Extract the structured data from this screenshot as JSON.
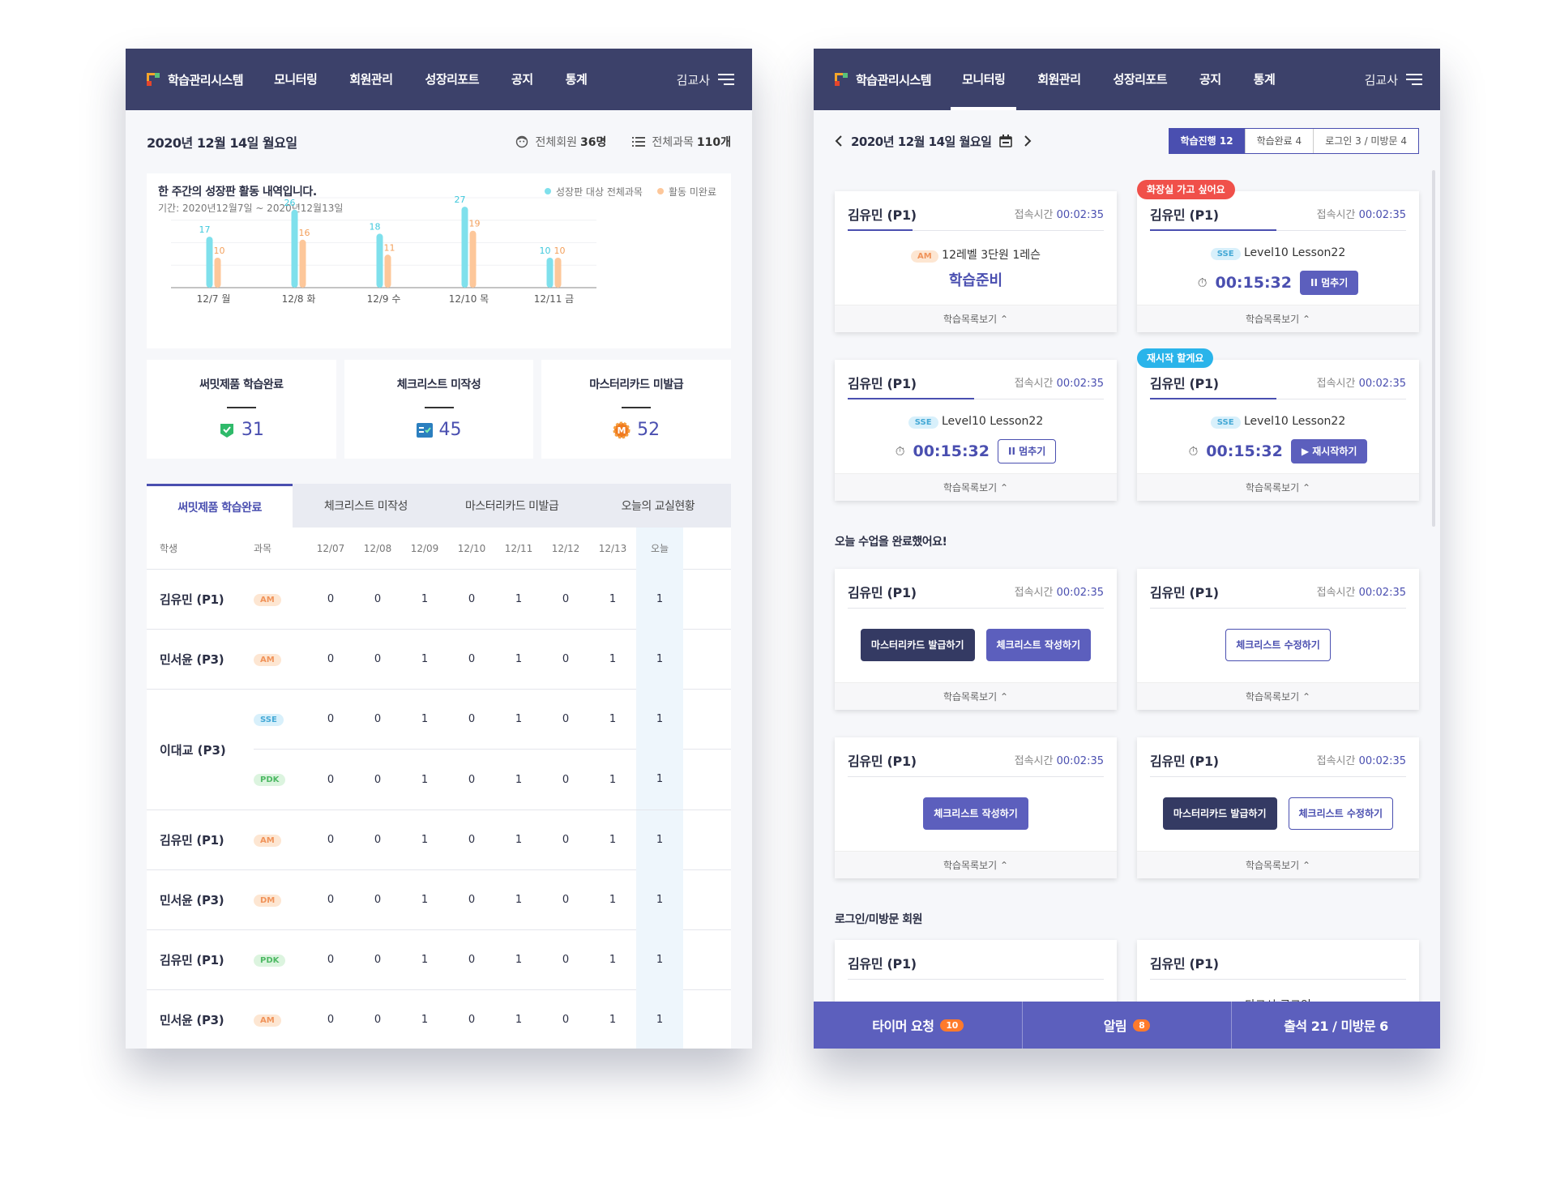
{
  "left": {
    "nav": {
      "brand": "학습관리시스템",
      "items": [
        "모니터링",
        "회원관리",
        "성장리포트",
        "공지",
        "통계"
      ],
      "user": "김교사"
    },
    "header": {
      "date": "2020년 12월 14일 월요일",
      "members_label": "전체회원",
      "members_value": "36명",
      "subjects_label": "전체과목",
      "subjects_value": "110개"
    },
    "chart_card": {
      "title": "한 주간의 성장판 활동 내역입니다.",
      "period": "기간: 2020년12월7일 ~ 2020년12월13일"
    },
    "kpis": [
      {
        "label": "써밋제품 학습완료",
        "value": "31"
      },
      {
        "label": "체크리스트 미작성",
        "value": "45"
      },
      {
        "label": "마스터리카드 미발급",
        "value": "52"
      }
    ],
    "kpi_icon_letter": "M",
    "tabs": [
      "써밋제품 학습완료",
      "체크리스트 미작성",
      "마스터리카드 미발급",
      "오늘의 교실현황"
    ],
    "table": {
      "headers": [
        "학생",
        "과목",
        "12/07",
        "12/08",
        "12/09",
        "12/10",
        "12/11",
        "12/12",
        "12/13",
        "오늘"
      ],
      "rows": [
        {
          "name": "김유민 (P1)",
          "subject": "AM",
          "values": [
            "0",
            "0",
            "1",
            "0",
            "1",
            "0",
            "1",
            "1"
          ]
        },
        {
          "name": "민서윤 (P3)",
          "subject": "AM",
          "values": [
            "0",
            "0",
            "1",
            "0",
            "1",
            "0",
            "1",
            "1"
          ]
        },
        {
          "name": "이대교 (P3)",
          "subject": "SSE",
          "values": [
            "0",
            "0",
            "1",
            "0",
            "1",
            "0",
            "1",
            "1"
          ]
        },
        {
          "name": "이대교 (P3)",
          "subject": "PDK",
          "values": [
            "0",
            "0",
            "1",
            "0",
            "1",
            "0",
            "1",
            "1"
          ]
        },
        {
          "name": "김유민 (P1)",
          "subject": "AM",
          "values": [
            "0",
            "0",
            "1",
            "0",
            "1",
            "0",
            "1",
            "1"
          ]
        },
        {
          "name": "민서윤 (P3)",
          "subject": "DM",
          "values": [
            "0",
            "0",
            "1",
            "0",
            "1",
            "0",
            "1",
            "1"
          ]
        },
        {
          "name": "김유민 (P1)",
          "subject": "PDK",
          "values": [
            "0",
            "0",
            "1",
            "0",
            "1",
            "0",
            "1",
            "1"
          ]
        },
        {
          "name": "민서윤 (P3)",
          "subject": "AM",
          "values": [
            "0",
            "0",
            "1",
            "0",
            "1",
            "0",
            "1",
            "1"
          ]
        }
      ]
    }
  },
  "chart_data": {
    "type": "bar",
    "categories": [
      "12/7 월",
      "12/8 화",
      "12/9 수",
      "12/10 목",
      "12/11 금"
    ],
    "series": [
      {
        "name": "성장판 대상 전체과목",
        "values": [
          17,
          26,
          18,
          27,
          10
        ],
        "color": "#7fe0ec"
      },
      {
        "name": "활동 미완료",
        "values": [
          10,
          16,
          11,
          19,
          10
        ],
        "color": "#fdc79a"
      }
    ],
    "ylim": [
      0,
      30
    ],
    "legend": "top-right",
    "grid": true
  },
  "right": {
    "nav": {
      "brand": "학습관리시스템",
      "items": [
        "모니터링",
        "회원관리",
        "성장리포트",
        "공지",
        "통계"
      ],
      "active": "모니터링",
      "user": "김교사"
    },
    "date": "2020년 12월 14일 월요일",
    "segments": [
      "학습진행 12",
      "학습완료 4",
      "로그인 3 / 미방문 4"
    ],
    "cards_in_progress": [
      {
        "name": "김유민 (P1)",
        "time_label": "접속시간",
        "time": "00:02:35",
        "subject": "AM",
        "lesson": "12레벨 3단원 1레슨",
        "status": "학습준비",
        "footer": "학습목록보기"
      },
      {
        "name": "김유민 (P1)",
        "time_label": "접속시간",
        "time": "00:02:35",
        "subject": "SSE",
        "lesson": "Level10 Lesson22",
        "timer": "00:15:32",
        "button": "II 멈추기",
        "tip": "화장실 가고 싶어요",
        "footer": "학습목록보기"
      },
      {
        "name": "김유민 (P1)",
        "time_label": "접속시간",
        "time": "00:02:35",
        "subject": "SSE",
        "lesson": "Level10 Lesson22",
        "timer": "00:15:32",
        "button": "II 멈추기",
        "footer": "학습목록보기"
      },
      {
        "name": "김유민 (P1)",
        "time_label": "접속시간",
        "time": "00:02:35",
        "subject": "SSE",
        "lesson": "Level10 Lesson22",
        "timer": "00:15:32",
        "button": "▶ 재시작하기",
        "tip": "재시작 할게요",
        "footer": "학습목록보기"
      }
    ],
    "section_done": "오늘 수업을 완료했어요!",
    "cards_done": [
      {
        "name": "김유민 (P1)",
        "time_label": "접속시간",
        "time": "00:02:35",
        "buttons": [
          "마스터리카드 발급하기",
          "체크리스트 작성하기"
        ],
        "footer": "학습목록보기"
      },
      {
        "name": "김유민 (P1)",
        "time_label": "접속시간",
        "time": "00:02:35",
        "buttons": [
          "체크리스트 수정하기"
        ],
        "footer": "학습목록보기"
      },
      {
        "name": "김유민 (P1)",
        "time_label": "접속시간",
        "time": "00:02:35",
        "buttons": [
          "체크리스트 작성하기"
        ],
        "footer": "학습목록보기"
      },
      {
        "name": "김유민 (P1)",
        "time_label": "접속시간",
        "time": "00:02:35",
        "buttons": [
          "마스터리카드 발급하기",
          "체크리스트 수정하기"
        ],
        "footer": "학습목록보기"
      }
    ],
    "section_login": "로그인/미방문 회원",
    "cards_login": [
      {
        "name": "김유민 (P1)"
      },
      {
        "name": "김유민 (P1)",
        "partial": "다그시 로그인"
      }
    ],
    "bottom": [
      {
        "label": "타이머 요청",
        "count": "10"
      },
      {
        "label": "알림",
        "count": "8"
      },
      {
        "label": "출석 21 / 미방문 6"
      }
    ]
  },
  "colors": {
    "nav": "#3c416a",
    "accent": "#4a4fb0",
    "accent_light": "#5c5fbd",
    "tip_red": "#f0504a",
    "tip_blue": "#2ab4ea"
  }
}
